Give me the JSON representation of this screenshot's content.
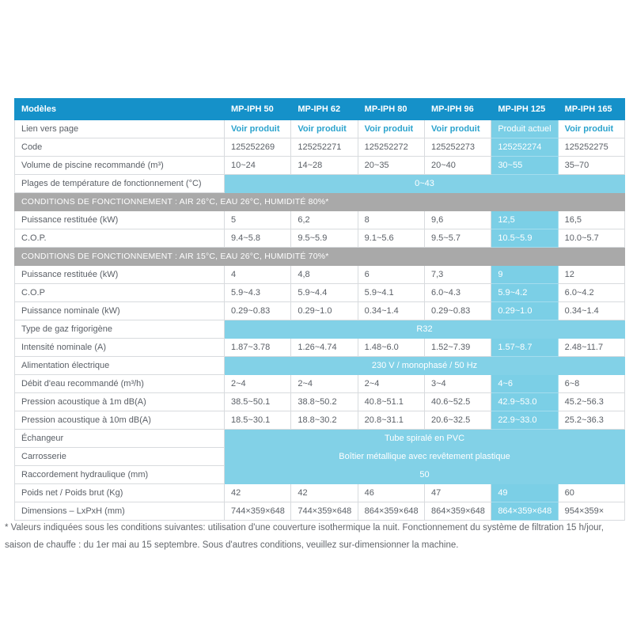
{
  "colors": {
    "header_bg": "#1591c9",
    "header_text": "#ffffff",
    "section_bg": "#a9a9a9",
    "section_text": "#ffffff",
    "highlight_bg": "#7bcfe6",
    "highlight_text": "#ffffff",
    "span_bg": "#82d1e7",
    "link_color": "#2ba3cd",
    "cell_text": "#5a5f66",
    "border": "#d8dbde",
    "footnote_text": "#63676c"
  },
  "table": {
    "columns": [
      "Modèles",
      "MP-IPH 50",
      "MP-IPH 62",
      "MP-IPH 80",
      "MP-IPH 96",
      "MP-IPH 125",
      "MP-IPH 165"
    ],
    "highlight_column": 5,
    "rows": [
      {
        "type": "links",
        "label": "Lien vers page",
        "values": [
          "Voir produit",
          "Voir produit",
          "Voir produit",
          "Voir produit",
          "Produit actuel",
          "Voir produit"
        ]
      },
      {
        "type": "data",
        "label": "Code",
        "values": [
          "125252269",
          "125252271",
          "125252272",
          "125252273",
          "125252274",
          "125252275"
        ]
      },
      {
        "type": "data",
        "label": "Volume de piscine recommandé (m³)",
        "values": [
          "10~24",
          "14~28",
          "20~35",
          "20~40",
          "30~55",
          "35–70"
        ]
      },
      {
        "type": "span",
        "label": "Plages de température de fonctionnement (°C)",
        "value": "0~43"
      },
      {
        "type": "section",
        "label": "CONDITIONS DE FONCTIONNEMENT : AIR 26°C, EAU 26°C, HUMIDITÉ 80%*"
      },
      {
        "type": "data",
        "label": "Puissance restituée (kW)",
        "values": [
          "5",
          "6,2",
          "8",
          "9,6",
          "12,5",
          "16,5"
        ]
      },
      {
        "type": "data",
        "label": "C.O.P.",
        "values": [
          "9.4~5.8",
          "9.5~5.9",
          "9.1~5.6",
          "9.5~5.7",
          "10.5~5.9",
          "10.0~5.7"
        ]
      },
      {
        "type": "section",
        "label": "CONDITIONS DE FONCTIONNEMENT : AIR 15°C, EAU 26°C, HUMIDITÉ 70%*"
      },
      {
        "type": "data",
        "label": "Puissance restituée (kW)",
        "values": [
          "4",
          "4,8",
          "6",
          "7,3",
          "9",
          "12"
        ]
      },
      {
        "type": "data",
        "label": "C.O.P",
        "values": [
          "5.9~4.3",
          "5.9~4.4",
          "5.9~4.1",
          "6.0~4.3",
          "5.9~4.2",
          "6.0~4.2"
        ]
      },
      {
        "type": "data",
        "label": "Puissance nominale (kW)",
        "values": [
          "0.29~0.83",
          "0.29~1.0",
          "0.34~1.4",
          "0.29~0.83",
          "0.29~1.0",
          "0.34~1.4"
        ]
      },
      {
        "type": "span",
        "label": "Type de gaz frigorigène",
        "value": "R32"
      },
      {
        "type": "data",
        "label": "Intensité nominale (A)",
        "values": [
          "1.87~3.78",
          "1.26~4.74",
          "1.48~6.0",
          "1.52~7.39",
          "1.57~8.7",
          "2.48~11.7"
        ]
      },
      {
        "type": "span",
        "label": "Alimentation électrique",
        "value": "230 V / monophasé / 50 Hz"
      },
      {
        "type": "data",
        "label": "Débit d'eau recommandé (m³/h)",
        "values": [
          "2~4",
          "2~4",
          "2~4",
          "3~4",
          "4~6",
          "6~8"
        ]
      },
      {
        "type": "data",
        "label": "Pression acoustique à 1m dB(A)",
        "values": [
          "38.5~50.1",
          "38.8~50.2",
          "40.8~51.1",
          "40.6~52.5",
          "42.9~53.0",
          "45.2~56.3"
        ]
      },
      {
        "type": "data",
        "label": "Pression acoustique à 10m dB(A)",
        "values": [
          "18.5~30.1",
          "18.8~30.2",
          "20.8~31.1",
          "20.6~32.5",
          "22.9~33.0",
          "25.2~36.3"
        ]
      },
      {
        "type": "span",
        "label": "Échangeur",
        "value": "Tube spiralé en PVC"
      },
      {
        "type": "span",
        "label": "Carrosserie",
        "value": "Boîtier métallique avec revêtement plastique"
      },
      {
        "type": "span",
        "label": "Raccordement hydraulique (mm)",
        "value": "50"
      },
      {
        "type": "data",
        "label": "Poids net / Poids brut (Kg)",
        "values": [
          "42",
          "42",
          "46",
          "47",
          "49",
          "60"
        ]
      },
      {
        "type": "data",
        "label": "Dimensions – LxPxH (mm)",
        "values": [
          "744×359×648",
          "744×359×648",
          "864×359×648",
          "864×359×648",
          "864×359×648",
          "954×359×"
        ]
      }
    ]
  },
  "footnote": "* Valeurs indiquées sous les conditions suivantes: utilisation d'une couverture isothermique la nuit. Fonctionnement du système de filtration 15 h/jour, saison de chauffe : du 1er mai au 15 septembre. Sous d'autres conditions, veuillez sur-dimensionner la machine."
}
